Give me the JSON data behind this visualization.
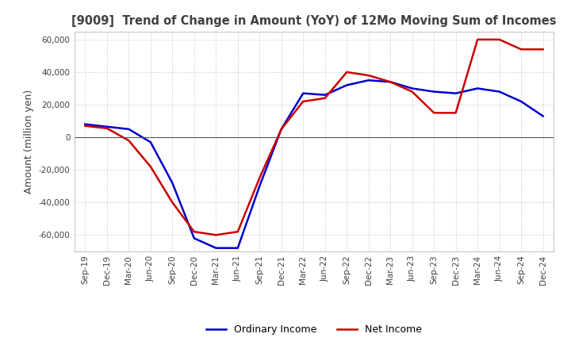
{
  "title": "[9009]  Trend of Change in Amount (YoY) of 12Mo Moving Sum of Incomes",
  "ylabel": "Amount (million yen)",
  "ylim": [
    -70000,
    65000
  ],
  "yticks": [
    -60000,
    -40000,
    -20000,
    0,
    20000,
    40000,
    60000
  ],
  "background_color": "#ffffff",
  "plot_background_color": "#ffffff",
  "grid_color": "#aaaaaa",
  "title_color": "#404040",
  "x_labels": [
    "Sep-19",
    "Dec-19",
    "Mar-20",
    "Jun-20",
    "Sep-20",
    "Dec-20",
    "Mar-21",
    "Jun-21",
    "Sep-21",
    "Dec-21",
    "Mar-22",
    "Jun-22",
    "Sep-22",
    "Dec-22",
    "Mar-23",
    "Jun-23",
    "Sep-23",
    "Dec-23",
    "Mar-24",
    "Jun-24",
    "Sep-24",
    "Dec-24"
  ],
  "ordinary_income": [
    8000,
    6500,
    5000,
    -3000,
    -28000,
    -62000,
    -68000,
    -68000,
    -30000,
    5000,
    27000,
    26000,
    32000,
    35000,
    34000,
    30000,
    28000,
    27000,
    30000,
    28000,
    22000,
    13000
  ],
  "net_income": [
    7000,
    5500,
    -2000,
    -18000,
    -40000,
    -58000,
    -60000,
    -58000,
    -25000,
    5000,
    22000,
    24000,
    40000,
    38000,
    34000,
    28000,
    15000,
    15000,
    60000,
    60000,
    54000,
    54000
  ],
  "ordinary_color": "#0000cc",
  "net_color": "#cc0000",
  "line_width": 1.8,
  "legend_labels": [
    "Ordinary Income",
    "Net Income"
  ]
}
